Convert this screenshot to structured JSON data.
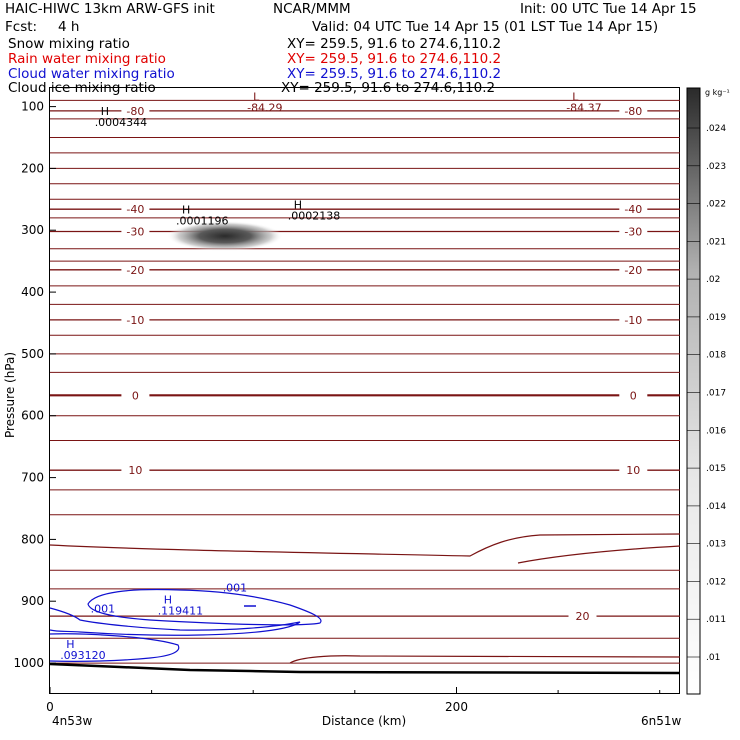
{
  "header": {
    "model": "HAIC-HIWC 13km ARW-GFS init",
    "org": "NCAR/MMM",
    "init": "Init: 00 UTC Tue 14 Apr 15",
    "fcst_label": "Fcst:",
    "fcst_value": "4 h",
    "valid": "Valid: 04 UTC Tue 14 Apr 15 (01 LST Tue 14 Apr 15)"
  },
  "fields": [
    {
      "name": "Snow mixing ratio",
      "xy": "XY= 259.5, 91.6 to 274.6,110.2",
      "color": "#000000"
    },
    {
      "name": "Rain water mixing ratio",
      "xy": "XY= 259.5, 91.6 to 274.6,110.2",
      "color": "#e00000"
    },
    {
      "name": "Cloud water mixing ratio",
      "xy": "XY= 259.5, 91.6 to 274.6,110.2",
      "color": "#1010d0"
    },
    {
      "name": "Cloud ice mixing ratio",
      "xy": "XY= 259.5, 91.6 to 274.6,110.2",
      "color": "#000000"
    }
  ],
  "chart_data": {
    "type": "contour cross-section",
    "ylabel": "Pressure (hPa)",
    "xlabel": "Distance (km)",
    "y_ticks": [
      100,
      200,
      300,
      400,
      500,
      600,
      700,
      800,
      900,
      1000
    ],
    "ylim": [
      1050,
      70
    ],
    "x_ticks": [
      0,
      200
    ],
    "xlim": [
      0,
      310
    ],
    "x_left_label": "4n53w",
    "x_right_label": "6n51w",
    "temperature_contours": [
      {
        "label": "-80",
        "p": 107,
        "pos": "both"
      },
      {
        "label": "-40",
        "p": 266,
        "pos": "both"
      },
      {
        "label": "-30",
        "p": 302,
        "pos": "both"
      },
      {
        "label": "-20",
        "p": 364,
        "pos": "both"
      },
      {
        "label": "-10",
        "p": 445,
        "pos": "both"
      },
      {
        "label": "0",
        "p": 567,
        "pos": "both"
      },
      {
        "label": "10",
        "p": 688,
        "pos": "both"
      },
      {
        "label": "20",
        "p": 924,
        "pos": "right"
      }
    ],
    "extrema": [
      {
        "type": "L",
        "value": "-84.29",
        "x": 97,
        "p": 90,
        "color": "#7a1414"
      },
      {
        "type": "L",
        "value": "-84.37",
        "x": 254,
        "p": 90,
        "color": "#7a1414"
      },
      {
        "type": "H",
        "value": ".0004344",
        "x": 22,
        "p": 114,
        "color": "#000000"
      },
      {
        "type": "H",
        "value": ".0002138",
        "x": 117,
        "p": 265,
        "color": "#000000"
      },
      {
        "type": "H",
        "value": ".0001196",
        "x": 62,
        "p": 273,
        "color": "#000000"
      },
      {
        "type": "H",
        "value": ".119411",
        "x": 53,
        "p": 904,
        "color": "#1010d0"
      },
      {
        "type": "H",
        "value": ".093120",
        "x": 5,
        "p": 976,
        "color": "#1010d0"
      }
    ],
    "cloud_water_labels": [
      {
        "text": ".001",
        "x": 85,
        "p": 884
      },
      {
        "text": ".001",
        "x": 20,
        "p": 918
      }
    ],
    "colorbar": {
      "unit": "g kg⁻¹",
      "ticks": [
        ".024",
        ".023",
        ".022",
        ".021",
        ".02",
        ".019",
        ".018",
        ".017",
        ".016",
        ".015",
        ".014",
        ".013",
        ".012",
        ".011",
        ".01"
      ]
    }
  }
}
